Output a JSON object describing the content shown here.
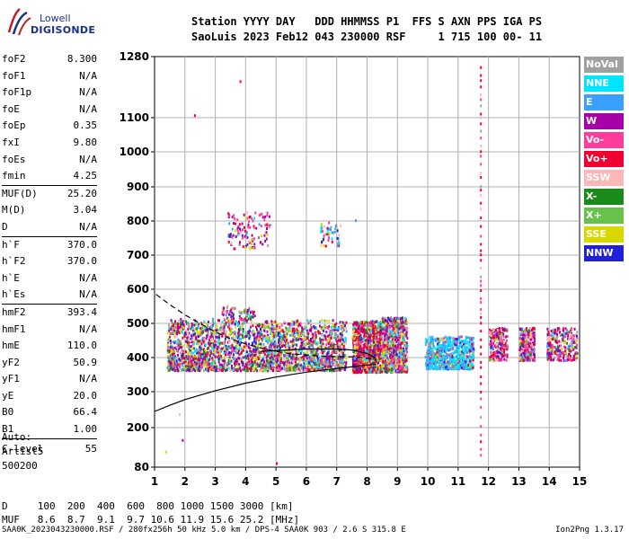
{
  "logo": {
    "line1": "Lowell",
    "line2": "DIGISONDE"
  },
  "header": {
    "row1": "Station YYYY DAY   DDD HHMMSS P1  FFS S AXN PPS IGA PS",
    "row2": "SaoLuis 2023 Feb12 043 230000 RSF     1 715 100 00- 11"
  },
  "params": [
    {
      "label": "foF2",
      "value": "8.300"
    },
    {
      "label": "foF1",
      "value": "N/A"
    },
    {
      "label": "foF1p",
      "value": "N/A"
    },
    {
      "label": "foE",
      "value": "N/A"
    },
    {
      "label": "foEp",
      "value": "0.35"
    },
    {
      "label": "fxI",
      "value": "9.80"
    },
    {
      "label": "foEs",
      "value": "N/A"
    },
    {
      "label": "fmin",
      "value": "4.25"
    },
    {
      "label": "MUF(D)",
      "value": "25.20"
    },
    {
      "label": "M(D)",
      "value": "3.04"
    },
    {
      "label": "D",
      "value": "N/A"
    },
    {
      "label": "h`F",
      "value": "370.0"
    },
    {
      "label": "h`F2",
      "value": "370.0"
    },
    {
      "label": "h`E",
      "value": "N/A"
    },
    {
      "label": "h`Es",
      "value": "N/A"
    },
    {
      "label": "hmF2",
      "value": "393.4"
    },
    {
      "label": "hmF1",
      "value": "N/A"
    },
    {
      "label": "hmE",
      "value": "110.0"
    },
    {
      "label": "yF2",
      "value": "50.9"
    },
    {
      "label": "yF1",
      "value": "N/A"
    },
    {
      "label": "yE",
      "value": "20.0"
    },
    {
      "label": "B0",
      "value": "66.4"
    },
    {
      "label": "B1",
      "value": "1.00"
    },
    {
      "label": "C-level",
      "value": "55"
    }
  ],
  "auto": {
    "line1": "Auto:",
    "line2": "Artist5",
    "line3": "500200"
  },
  "dtable": {
    "row1": "D     100  200  400  600  800 1000 1500 3000 [km]",
    "row2": "MUF   8.6  8.7  9.1  9.7 10.6 11.9 15.6 25.2 [MHz]"
  },
  "footer": {
    "left": "SAA0K_2023043230000.RSF / 280fx256h 50 kHz 5.0 km / DPS-4 SAA0K 903 / 2.6 S 315.8 E",
    "right": "Ion2Png 1.3.17"
  },
  "legend": [
    {
      "name": "NoVal",
      "color": "#a0a0a0"
    },
    {
      "name": "NNE",
      "color": "#00e5ff"
    },
    {
      "name": "E",
      "color": "#3aa0ff"
    },
    {
      "name": "W",
      "color": "#a800a8"
    },
    {
      "name": "Vo-",
      "color": "#ff3c9c"
    },
    {
      "name": "Vo+",
      "color": "#f00030"
    },
    {
      "name": "SSW",
      "color": "#ffb6b6"
    },
    {
      "name": "X-",
      "color": "#1a8a1a"
    },
    {
      "name": "X+",
      "color": "#66c24a"
    },
    {
      "name": "SSE",
      "color": "#d8d800"
    },
    {
      "name": "NNW",
      "color": "#2020d8"
    }
  ],
  "chart_data": {
    "type": "scatter",
    "x_ticks": [
      1,
      2,
      3,
      4,
      5,
      6,
      7,
      8,
      9,
      10,
      11,
      12,
      13,
      14,
      15
    ],
    "y_ticks": [
      80,
      200,
      300,
      400,
      500,
      600,
      700,
      800,
      900,
      1000,
      1100,
      1280
    ],
    "xlim": [
      1,
      15
    ],
    "ylim": [
      80,
      1280
    ],
    "y_scale": "nonlinear",
    "grid": true,
    "curves": [
      {
        "style": "solid",
        "points": [
          [
            1.0,
            245
          ],
          [
            1.5,
            262
          ],
          [
            2,
            278
          ],
          [
            3,
            303
          ],
          [
            4,
            325
          ],
          [
            5,
            343
          ],
          [
            6,
            357
          ],
          [
            7,
            368
          ],
          [
            8,
            378
          ],
          [
            8.3,
            380
          ]
        ]
      },
      {
        "style": "dashed",
        "points": [
          [
            1.05,
            585
          ],
          [
            1.5,
            555
          ],
          [
            2,
            525
          ],
          [
            2.5,
            500
          ],
          [
            3,
            475
          ],
          [
            3.5,
            455
          ],
          [
            4,
            440
          ],
          [
            4.5,
            428
          ],
          [
            5,
            418
          ],
          [
            5.5,
            411
          ],
          [
            6,
            407
          ],
          [
            6.5,
            404
          ],
          [
            7,
            403
          ],
          [
            7.5,
            402
          ],
          [
            8,
            398
          ],
          [
            8.3,
            393
          ]
        ]
      },
      {
        "style": "solid",
        "points": [
          [
            4.5,
            418
          ],
          [
            5,
            420
          ],
          [
            6,
            425
          ],
          [
            7,
            425
          ],
          [
            7.5,
            422
          ],
          [
            8,
            412
          ],
          [
            8.3,
            397
          ]
        ]
      }
    ]
  }
}
